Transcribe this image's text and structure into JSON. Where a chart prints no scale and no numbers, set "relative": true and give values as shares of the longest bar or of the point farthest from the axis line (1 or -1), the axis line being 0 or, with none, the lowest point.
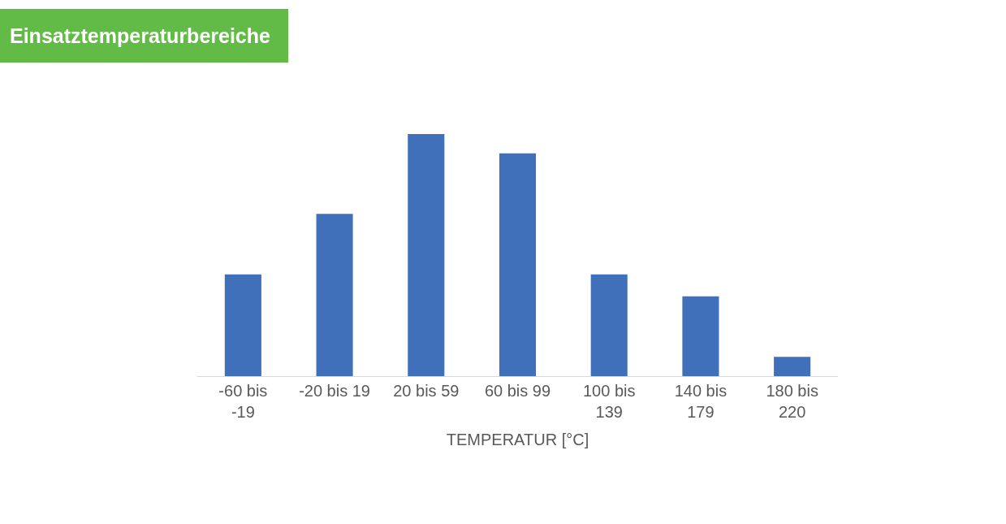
{
  "chart_data": {
    "type": "bar",
    "title": "Einsatztemperaturbereiche",
    "xlabel": "TEMPERATUR [°C]",
    "relative": true,
    "categories": [
      "-60 bis -19",
      "-20 bis 19",
      "20 bis 59",
      "60 bis 99",
      "100 bis 139",
      "140 bis 179",
      "180 bis 220"
    ],
    "values": [
      0.42,
      0.67,
      1,
      0.92,
      0.42,
      0.33,
      0.08
    ],
    "color": "#4070ba",
    "grid": false,
    "legend": false
  }
}
